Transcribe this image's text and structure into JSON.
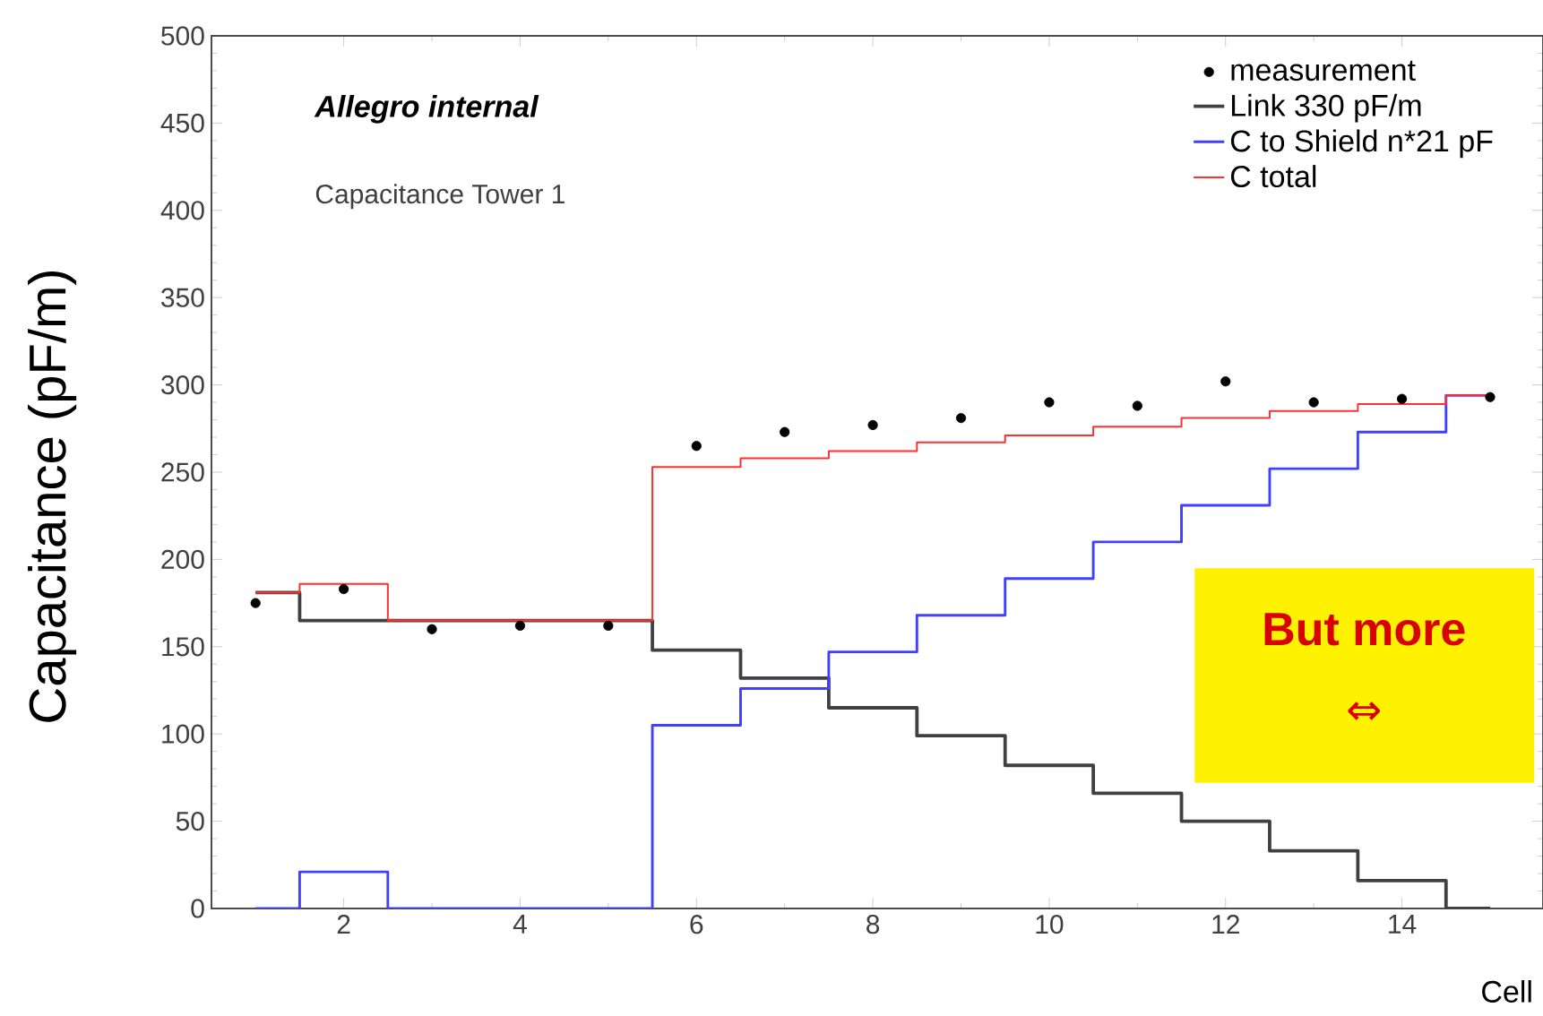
{
  "chart_data": {
    "type": "step",
    "xlabel": "Cell",
    "ylabel": "Capacitance (pF/m)",
    "annotations": [
      "Allegro internal",
      "Capacitance   Tower 1",
      "But more",
      "⇔"
    ],
    "x": [
      1,
      2,
      3,
      4,
      5,
      6,
      7,
      8,
      9,
      10,
      11,
      12,
      13,
      14,
      15
    ],
    "xlim": [
      0.5,
      15.6
    ],
    "xticks": [
      2,
      4,
      6,
      8,
      10,
      12,
      14
    ],
    "ylim": [
      0,
      500
    ],
    "yticks": [
      0,
      50,
      100,
      150,
      200,
      250,
      300,
      350,
      400,
      450,
      500
    ],
    "legend": "top right",
    "grid": false,
    "series": [
      {
        "name": "measurement",
        "type": "scatter",
        "marker": "circle",
        "color": "#000000",
        "values": [
          175,
          183,
          160,
          162,
          162,
          265,
          273,
          277,
          281,
          290,
          288,
          302,
          290,
          292,
          293
        ]
      },
      {
        "name": "Link 330 pF/m",
        "color": "#404040",
        "values": [
          181,
          165,
          165,
          165,
          165,
          148,
          132,
          115,
          99,
          82,
          66,
          50,
          33,
          16,
          0
        ]
      },
      {
        "name": "C to Shield  n*21 pF",
        "color": "#4040ff",
        "values": [
          0,
          21,
          0,
          0,
          0,
          105,
          126,
          147,
          168,
          189,
          210,
          231,
          252,
          273,
          294
        ]
      },
      {
        "name": "C total",
        "color": "#ff3030",
        "values": [
          181,
          186,
          165,
          165,
          165,
          253,
          258,
          262,
          267,
          271,
          276,
          281,
          285,
          289,
          294
        ]
      }
    ]
  }
}
